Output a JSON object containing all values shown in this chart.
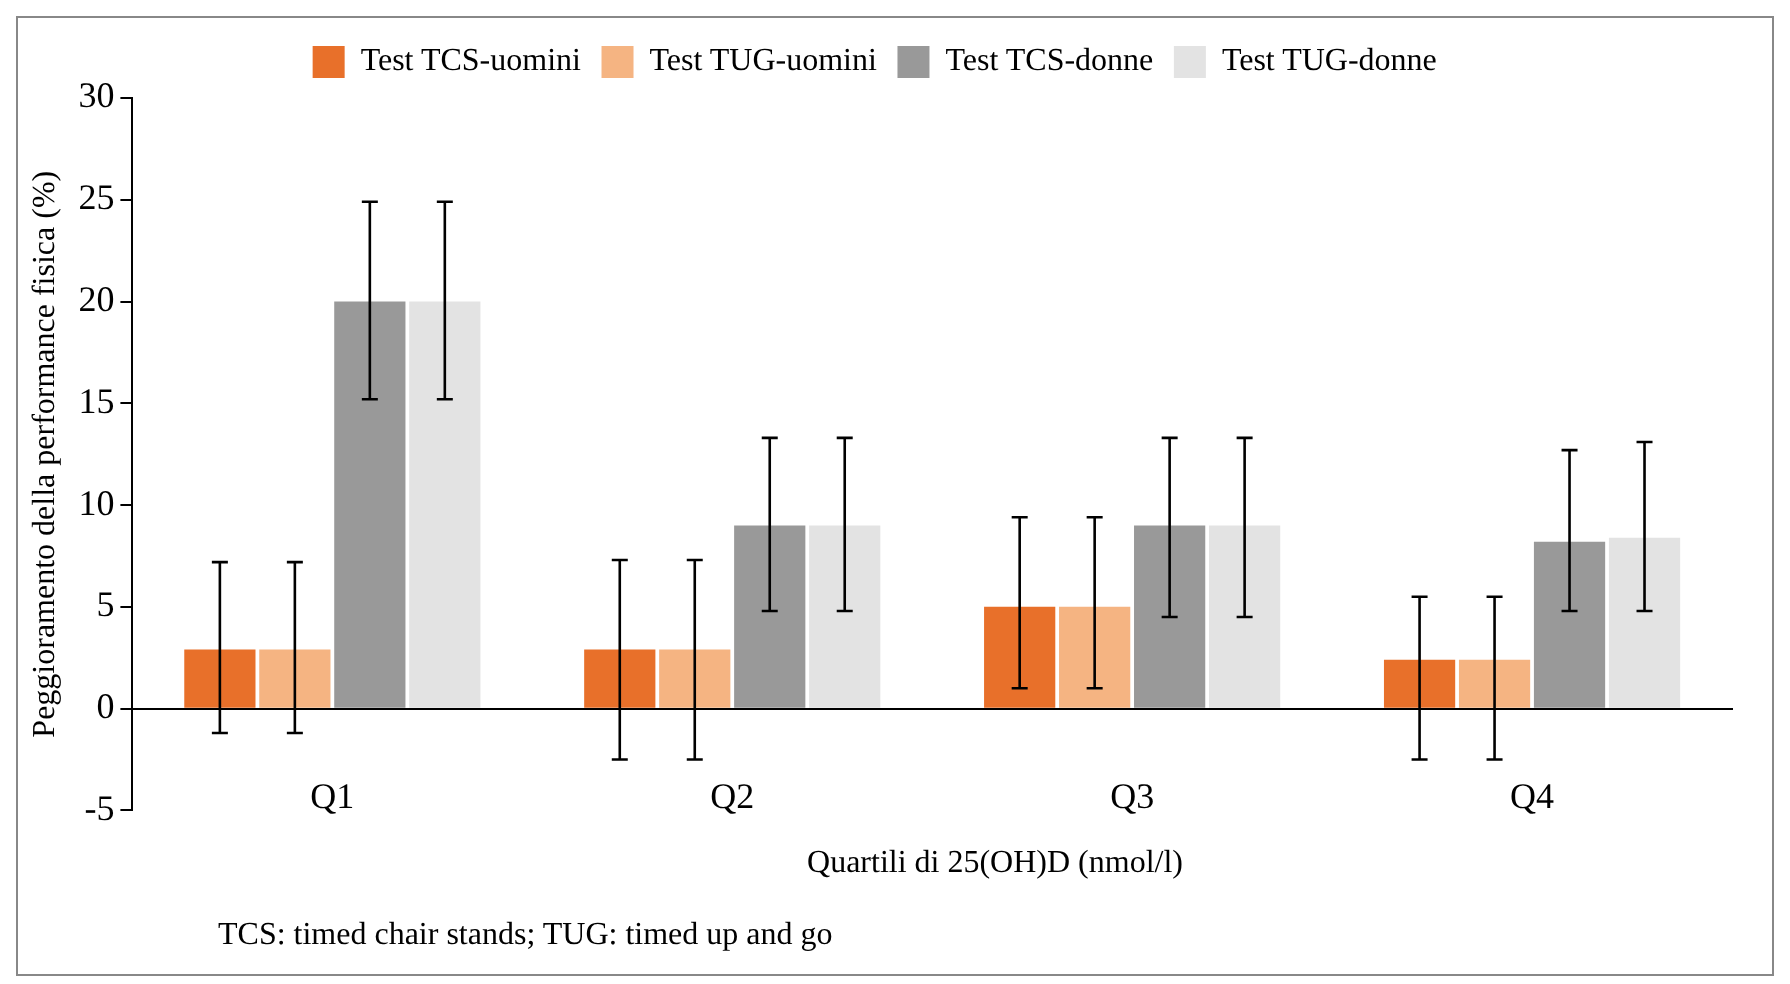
{
  "chart_data": {
    "type": "bar",
    "xlabel": "Quartili di 25(OH)D (nmol/l)",
    "ylabel": "Peggioramento della performance fisica (%)",
    "categories": [
      "Q1",
      "Q2",
      "Q3",
      "Q4"
    ],
    "series": [
      {
        "name": "Test TCS-uomini",
        "color": "#e8702a",
        "values": [
          2.9,
          2.9,
          5.0,
          2.4
        ],
        "errors": [
          [
            -1.2,
            7.2
          ],
          [
            -2.5,
            7.3
          ],
          [
            1.0,
            9.4
          ],
          [
            -2.5,
            5.5
          ]
        ]
      },
      {
        "name": "Test TUG-uomini",
        "color": "#f5b482",
        "values": [
          2.9,
          2.9,
          5.0,
          2.4
        ],
        "errors": [
          [
            -1.2,
            7.2
          ],
          [
            -2.5,
            7.3
          ],
          [
            1.0,
            9.4
          ],
          [
            -2.5,
            5.5
          ]
        ]
      },
      {
        "name": "Test TCS-donne",
        "color": "#999999",
        "values": [
          20,
          9.0,
          9.0,
          8.2
        ],
        "errors": [
          [
            15.2,
            24.9
          ],
          [
            4.8,
            13.3
          ],
          [
            4.5,
            13.3
          ],
          [
            4.8,
            12.7
          ]
        ]
      },
      {
        "name": "Test TUG-donne",
        "color": "#e3e3e3",
        "values": [
          20,
          9.0,
          9.0,
          8.4
        ],
        "errors": [
          [
            15.2,
            24.9
          ],
          [
            4.8,
            13.3
          ],
          [
            4.5,
            13.3
          ],
          [
            4.8,
            13.1
          ]
        ]
      }
    ],
    "ylim": [
      -5,
      30
    ],
    "yticks": [
      -5,
      0,
      5,
      10,
      15,
      20,
      25,
      30
    ],
    "grid": false,
    "legend": "top",
    "annotations": [
      "TCS: timed chair stands; TUG: timed up and go"
    ]
  }
}
